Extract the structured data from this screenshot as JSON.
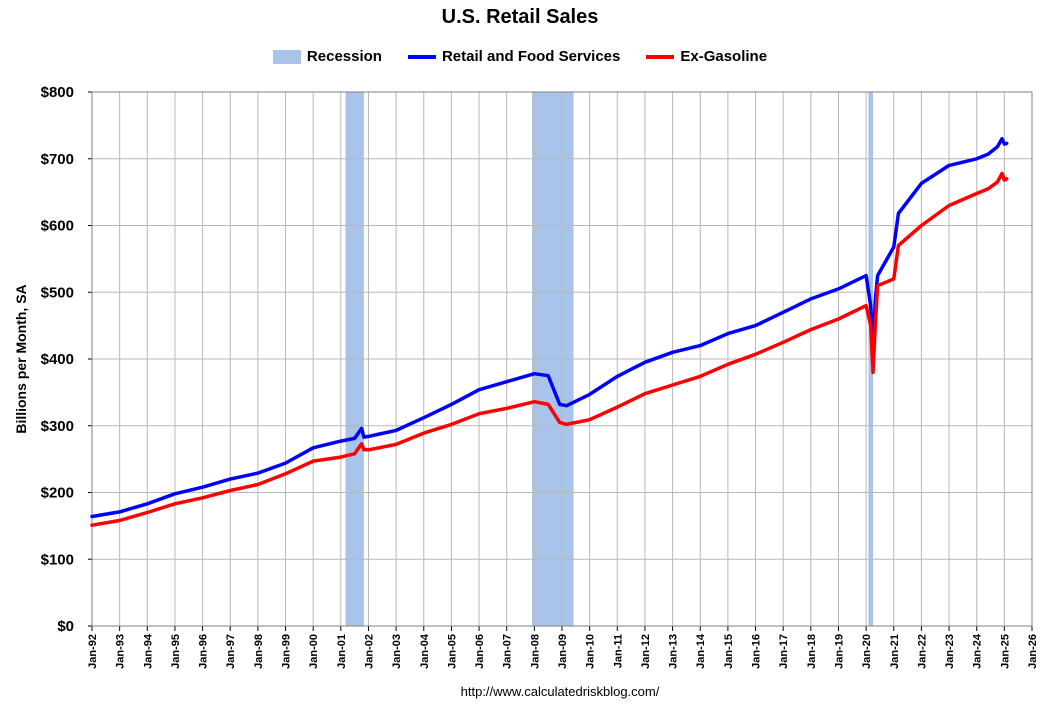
{
  "chart_data": {
    "type": "line",
    "title": "U.S. Retail Sales",
    "ylabel": "Billions per Month, SA",
    "xlabel": "",
    "ylim": [
      0,
      800
    ],
    "xlim": [
      1992,
      2026
    ],
    "y_ticks": [
      "$0",
      "$100",
      "$200",
      "$300",
      "$400",
      "$500",
      "$600",
      "$700",
      "$800"
    ],
    "x_ticks": [
      "Jan-92",
      "Jan-93",
      "Jan-94",
      "Jan-95",
      "Jan-96",
      "Jan-97",
      "Jan-98",
      "Jan-99",
      "Jan-00",
      "Jan-01",
      "Jan-02",
      "Jan-03",
      "Jan-04",
      "Jan-05",
      "Jan-06",
      "Jan-07",
      "Jan-08",
      "Jan-09",
      "Jan-10",
      "Jan-11",
      "Jan-12",
      "Jan-13",
      "Jan-14",
      "Jan-15",
      "Jan-16",
      "Jan-17",
      "Jan-18",
      "Jan-19",
      "Jan-20",
      "Jan-21",
      "Jan-22",
      "Jan-23",
      "Jan-24",
      "Jan-25",
      "Jan-26"
    ],
    "grid": true,
    "legend_position": "top",
    "recession": {
      "name": "Recession",
      "color": "#a9c4eb",
      "periods": [
        [
          "Mar-01",
          "Nov-01"
        ],
        [
          "Dec-07",
          "Jun-09"
        ],
        [
          "Feb-20",
          "Apr-20"
        ]
      ]
    },
    "series": [
      {
        "name": "Retail and Food Services",
        "color": "#0000ff",
        "points": [
          [
            "Jan-92",
            164
          ],
          [
            "Jan-93",
            171
          ],
          [
            "Jan-94",
            183
          ],
          [
            "Jan-95",
            198
          ],
          [
            "Jan-96",
            208
          ],
          [
            "Jan-97",
            220
          ],
          [
            "Jan-98",
            229
          ],
          [
            "Jan-99",
            244
          ],
          [
            "Jan-00",
            267
          ],
          [
            "Jan-01",
            277
          ],
          [
            "Jul-01",
            281
          ],
          [
            "Oct-01",
            296
          ],
          [
            "Nov-01",
            283
          ],
          [
            "Jan-02",
            284
          ],
          [
            "Jan-03",
            293
          ],
          [
            "Jan-04",
            312
          ],
          [
            "Jan-05",
            332
          ],
          [
            "Jan-06",
            354
          ],
          [
            "Jan-07",
            366
          ],
          [
            "Jan-08",
            378
          ],
          [
            "Jul-08",
            375
          ],
          [
            "Dec-08",
            332
          ],
          [
            "Mar-09",
            330
          ],
          [
            "Jan-10",
            347
          ],
          [
            "Jan-11",
            374
          ],
          [
            "Jan-12",
            395
          ],
          [
            "Jan-13",
            410
          ],
          [
            "Jan-14",
            420
          ],
          [
            "Jan-15",
            438
          ],
          [
            "Jan-16",
            450
          ],
          [
            "Jan-17",
            470
          ],
          [
            "Jan-18",
            490
          ],
          [
            "Jan-19",
            505
          ],
          [
            "Jan-20",
            525
          ],
          [
            "Mar-20",
            480
          ],
          [
            "Apr-20",
            415
          ],
          [
            "May-20",
            488
          ],
          [
            "Jun-20",
            525
          ],
          [
            "Jan-21",
            568
          ],
          [
            "Mar-21",
            618
          ],
          [
            "Jan-22",
            663
          ],
          [
            "Jan-23",
            690
          ],
          [
            "Jan-24",
            700
          ],
          [
            "Jun-24",
            707
          ],
          [
            "Oct-24",
            718
          ],
          [
            "Dec-24",
            730
          ],
          [
            "Jan-25",
            722
          ],
          [
            "Feb-25",
            723
          ]
        ]
      },
      {
        "name": "Ex-Gasoline",
        "color": "#ff0000",
        "points": [
          [
            "Jan-92",
            151
          ],
          [
            "Jan-93",
            158
          ],
          [
            "Jan-94",
            170
          ],
          [
            "Jan-95",
            183
          ],
          [
            "Jan-96",
            192
          ],
          [
            "Jan-97",
            203
          ],
          [
            "Jan-98",
            212
          ],
          [
            "Jan-99",
            228
          ],
          [
            "Jan-00",
            247
          ],
          [
            "Jan-01",
            253
          ],
          [
            "Jul-01",
            258
          ],
          [
            "Oct-01",
            273
          ],
          [
            "Nov-01",
            264
          ],
          [
            "Jan-02",
            264
          ],
          [
            "Jan-03",
            272
          ],
          [
            "Jan-04",
            289
          ],
          [
            "Jan-05",
            302
          ],
          [
            "Jan-06",
            318
          ],
          [
            "Jan-07",
            326
          ],
          [
            "Jan-08",
            336
          ],
          [
            "Jul-08",
            332
          ],
          [
            "Dec-08",
            305
          ],
          [
            "Mar-09",
            302
          ],
          [
            "Jan-10",
            309
          ],
          [
            "Jan-11",
            328
          ],
          [
            "Jan-12",
            348
          ],
          [
            "Jan-13",
            361
          ],
          [
            "Jan-14",
            374
          ],
          [
            "Jan-15",
            392
          ],
          [
            "Jan-16",
            407
          ],
          [
            "Jan-17",
            425
          ],
          [
            "Jan-18",
            444
          ],
          [
            "Jan-19",
            460
          ],
          [
            "Jan-20",
            480
          ],
          [
            "Mar-20",
            450
          ],
          [
            "Apr-20",
            380
          ],
          [
            "May-20",
            450
          ],
          [
            "Jun-20",
            510
          ],
          [
            "Jan-21",
            520
          ],
          [
            "Mar-21",
            570
          ],
          [
            "Jan-22",
            600
          ],
          [
            "Jan-23",
            630
          ],
          [
            "Jan-24",
            648
          ],
          [
            "Jun-24",
            655
          ],
          [
            "Oct-24",
            665
          ],
          [
            "Dec-24",
            678
          ],
          [
            "Jan-25",
            668
          ],
          [
            "Feb-25",
            670
          ]
        ]
      }
    ],
    "source": "http://www.calculatedriskblog.com/"
  }
}
